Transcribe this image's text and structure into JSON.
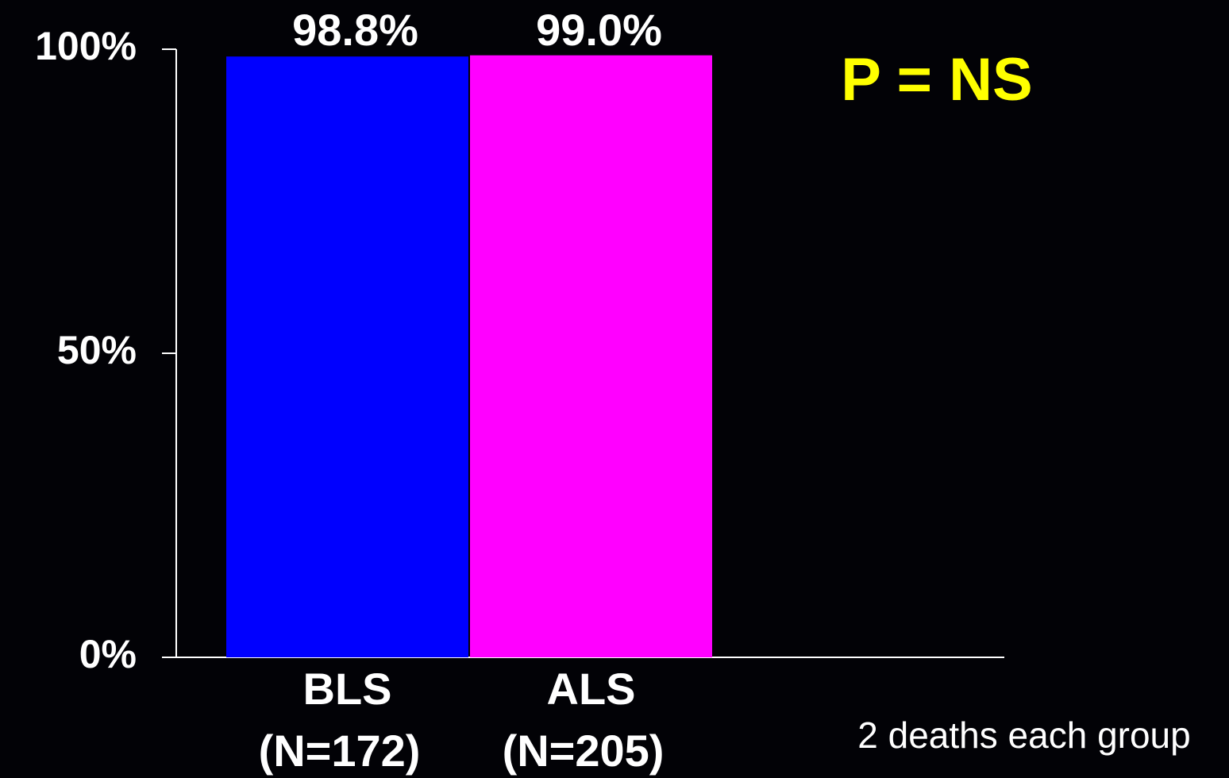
{
  "chart_data": {
    "type": "bar",
    "categories": [
      "BLS",
      "ALS"
    ],
    "category_sublabels": [
      "(N=172)",
      "(N=205)"
    ],
    "values": [
      98.8,
      99.0
    ],
    "value_labels": [
      "98.8%",
      "99.0%"
    ],
    "colors": [
      "#0000ff",
      "#ff00ff"
    ],
    "ylim": [
      0,
      100
    ],
    "yticks": [
      {
        "value": 0,
        "label": "0%"
      },
      {
        "value": 50,
        "label": "50%"
      },
      {
        "value": 100,
        "label": "100%"
      }
    ],
    "grid": false,
    "annotations": [
      "P = NS",
      "2 deaths each group"
    ]
  }
}
